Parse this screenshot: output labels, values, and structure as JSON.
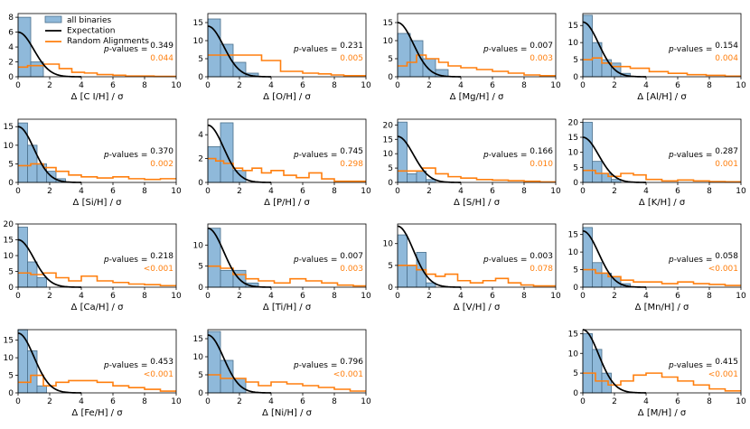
{
  "figure": {
    "legend": {
      "entries": [
        "all binaries",
        "Expectation",
        "Random Alignments"
      ]
    },
    "pvalue_label": "-values =",
    "pvalue_prefix": "p"
  },
  "colors": {
    "binaries_fill": "#8fb9da",
    "binaries_edge": "#4a6f8a",
    "expectation": "#000000",
    "random": "#ff7f0e",
    "axis": "#000000"
  },
  "chart_data": [
    {
      "type": "histogram",
      "element": "C I",
      "xlabel": "Δ [C I/H] / σ",
      "ylabel": "",
      "xlim": [
        0,
        10
      ],
      "ylim": [
        0,
        8.5
      ],
      "xticks": [
        0,
        2,
        4,
        6,
        8,
        10
      ],
      "yticks": [
        0,
        2,
        4,
        6,
        8
      ],
      "bins": [
        0,
        0.8,
        1.6
      ],
      "binary_counts": [
        8,
        2
      ],
      "expectation_peak": 6.0,
      "random_x": [
        0,
        0.6,
        1.6,
        2.6,
        3.4,
        4.2,
        5.0,
        6.0,
        6.8,
        7.8,
        8.6,
        10
      ],
      "random_y": [
        1.3,
        1.5,
        1.7,
        1.1,
        0.6,
        0.5,
        0.3,
        0.2,
        0.1,
        0.1,
        0.05
      ],
      "pvalue_binaries": "0.349",
      "pvalue_random": "0.044"
    },
    {
      "type": "histogram",
      "element": "O",
      "xlabel": "Δ [O/H] / σ",
      "ylabel": "",
      "xlim": [
        0,
        10
      ],
      "ylim": [
        0,
        17.5
      ],
      "xticks": [
        0,
        2,
        4,
        6,
        8,
        10
      ],
      "yticks": [
        0,
        5,
        10,
        15
      ],
      "bins": [
        0,
        0.8,
        1.6,
        2.4,
        3.2
      ],
      "binary_counts": [
        16,
        9,
        4,
        1
      ],
      "expectation_peak": 14.0,
      "random_x": [
        0,
        1.8,
        3.4,
        4.6,
        6.0,
        7.0,
        7.8,
        8.6,
        10
      ],
      "random_y": [
        6,
        6,
        4.5,
        1.5,
        1.0,
        0.8,
        0.5,
        0.3
      ],
      "pvalue_binaries": "0.231",
      "pvalue_random": "0.005"
    },
    {
      "type": "histogram",
      "element": "Mg",
      "xlabel": "Δ [Mg/H] / σ",
      "ylabel": "",
      "xlim": [
        0,
        10
      ],
      "ylim": [
        0,
        17.5
      ],
      "xticks": [
        0,
        2,
        4,
        6,
        8,
        10
      ],
      "yticks": [
        0,
        5,
        10,
        15
      ],
      "bins": [
        0,
        0.8,
        1.6,
        2.4,
        3.2
      ],
      "binary_counts": [
        12,
        10,
        5,
        2
      ],
      "expectation_peak": 15.0,
      "random_x": [
        0,
        0.6,
        1.2,
        1.8,
        2.6,
        3.2,
        4.0,
        5.0,
        6.0,
        7.0,
        8.0,
        9.0,
        10
      ],
      "random_y": [
        3,
        4,
        6,
        5,
        4,
        3,
        2.5,
        2,
        1.5,
        1,
        0.5,
        0.3
      ],
      "pvalue_binaries": "0.007",
      "pvalue_random": "0.003"
    },
    {
      "type": "histogram",
      "element": "Al",
      "xlabel": "Δ [Al/H] / σ",
      "ylabel": "",
      "xlim": [
        0,
        10
      ],
      "ylim": [
        0,
        18.5
      ],
      "xticks": [
        0,
        2,
        4,
        6,
        8,
        10
      ],
      "yticks": [
        0,
        5,
        10,
        15
      ],
      "bins": [
        0,
        0.6,
        1.2,
        1.8,
        2.4,
        3.0
      ],
      "binary_counts": [
        18,
        10,
        5,
        4,
        1
      ],
      "expectation_peak": 16.0,
      "random_x": [
        0,
        0.6,
        1.2,
        1.8,
        3.0,
        4.2,
        5.4,
        6.6,
        7.8,
        9.0,
        10
      ],
      "random_y": [
        5,
        5.5,
        4,
        3,
        2.5,
        1.5,
        1.0,
        0.6,
        0.4,
        0.2
      ],
      "pvalue_binaries": "0.154",
      "pvalue_random": "0.004"
    },
    {
      "type": "histogram",
      "element": "Si",
      "xlabel": "Δ [Si/H] / σ",
      "ylabel": "",
      "xlim": [
        0,
        10
      ],
      "ylim": [
        0,
        17
      ],
      "xticks": [
        0,
        2,
        4,
        6,
        8,
        10
      ],
      "yticks": [
        0,
        5,
        10,
        15
      ],
      "bins": [
        0,
        0.6,
        1.2,
        1.8,
        2.4,
        3.0
      ],
      "binary_counts": [
        16,
        10,
        5,
        3,
        1
      ],
      "expectation_peak": 15.0,
      "random_x": [
        0,
        0.8,
        1.6,
        2.4,
        3.2,
        4.0,
        5.0,
        6.0,
        7.0,
        8.0,
        9.0,
        10
      ],
      "random_y": [
        4.5,
        5,
        4,
        3,
        2,
        1.5,
        1.2,
        1.5,
        1,
        0.8,
        1
      ],
      "pvalue_binaries": "0.370",
      "pvalue_random": "0.002"
    },
    {
      "type": "histogram",
      "element": "P",
      "xlabel": "Δ [P/H] / σ",
      "ylabel": "",
      "xlim": [
        0,
        10
      ],
      "ylim": [
        0,
        5.3
      ],
      "xticks": [
        0,
        2,
        4,
        6,
        8,
        10
      ],
      "yticks": [
        0,
        2,
        4
      ],
      "bins": [
        0,
        0.8,
        1.6,
        2.4
      ],
      "binary_counts": [
        3,
        5,
        1
      ],
      "expectation_peak": 4.8,
      "random_x": [
        0,
        0.5,
        1.0,
        1.6,
        2.2,
        2.8,
        3.4,
        4.0,
        4.8,
        5.6,
        6.4,
        7.2,
        8.0,
        10
      ],
      "random_y": [
        2.0,
        1.8,
        1.6,
        1.2,
        1.0,
        1.2,
        0.8,
        1.0,
        0.6,
        0.4,
        0.8,
        0.3,
        0.1
      ],
      "pvalue_binaries": "0.745",
      "pvalue_random": "0.298"
    },
    {
      "type": "histogram",
      "element": "S",
      "xlabel": "Δ [S/H] / σ",
      "ylabel": "",
      "xlim": [
        0,
        10
      ],
      "ylim": [
        0,
        22
      ],
      "xticks": [
        0,
        2,
        4,
        6,
        8,
        10
      ],
      "yticks": [
        0,
        5,
        10,
        15,
        20
      ],
      "bins": [
        0,
        0.6,
        1.2,
        1.8,
        2.4
      ],
      "binary_counts": [
        21,
        3,
        4,
        1
      ],
      "expectation_peak": 16.0,
      "random_x": [
        0,
        0.8,
        1.6,
        2.4,
        3.2,
        4.0,
        5.0,
        6.0,
        7.0,
        8.0,
        9.0,
        10
      ],
      "random_y": [
        4,
        4,
        5,
        3,
        2,
        1.5,
        1,
        0.8,
        0.6,
        0.4,
        0.2
      ],
      "pvalue_binaries": "0.166",
      "pvalue_random": "0.010"
    },
    {
      "type": "histogram",
      "element": "K",
      "xlabel": "Δ [K/H] / σ",
      "ylabel": "",
      "xlim": [
        0,
        10
      ],
      "ylim": [
        0,
        21
      ],
      "xticks": [
        0,
        2,
        4,
        6,
        8,
        10
      ],
      "yticks": [
        0,
        5,
        10,
        15,
        20
      ],
      "bins": [
        0,
        0.6,
        1.2,
        1.8,
        2.4
      ],
      "binary_counts": [
        20,
        7,
        3,
        1
      ],
      "expectation_peak": 15.0,
      "random_x": [
        0,
        0.8,
        1.6,
        2.4,
        3.2,
        4.0,
        5.0,
        6.0,
        7.0,
        8.0,
        9.0,
        10
      ],
      "random_y": [
        4,
        3,
        2,
        3,
        2.5,
        1,
        0.5,
        0.8,
        0.5,
        0.3,
        0.2
      ],
      "pvalue_binaries": "0.287",
      "pvalue_random": "0.001"
    },
    {
      "type": "histogram",
      "element": "Ca",
      "xlabel": "Δ [Ca/H] / σ",
      "ylabel": "",
      "xlim": [
        0,
        10
      ],
      "ylim": [
        0,
        20
      ],
      "xticks": [
        0,
        2,
        4,
        6,
        8,
        10
      ],
      "yticks": [
        0,
        5,
        10,
        15,
        20
      ],
      "bins": [
        0,
        0.6,
        1.2,
        1.8
      ],
      "binary_counts": [
        19,
        8,
        3
      ],
      "expectation_peak": 15.0,
      "random_x": [
        0,
        0.8,
        1.6,
        2.4,
        3.2,
        4.0,
        5.0,
        6.0,
        7.0,
        8.0,
        9.0,
        10
      ],
      "random_y": [
        4.5,
        4,
        4.5,
        3,
        2,
        3.5,
        2,
        1.5,
        1,
        0.8,
        0.5
      ],
      "pvalue_binaries": "0.218",
      "pvalue_random": "<0.001"
    },
    {
      "type": "histogram",
      "element": "Ti",
      "xlabel": "Δ [Ti/H] / σ",
      "ylabel": "",
      "xlim": [
        0,
        10
      ],
      "ylim": [
        0,
        15
      ],
      "xticks": [
        0,
        2,
        4,
        6,
        8,
        10
      ],
      "yticks": [
        0,
        5,
        10
      ],
      "bins": [
        0,
        0.8,
        1.6,
        2.4,
        3.2
      ],
      "binary_counts": [
        14,
        4,
        4,
        1
      ],
      "expectation_peak": 14.0,
      "random_x": [
        0,
        0.8,
        1.6,
        2.4,
        3.2,
        4.2,
        5.2,
        6.2,
        7.2,
        8.2,
        9.2,
        10
      ],
      "random_y": [
        5,
        4.5,
        3,
        2,
        1.5,
        1,
        2,
        1.5,
        1,
        0.5,
        0.3
      ],
      "pvalue_binaries": "0.007",
      "pvalue_random": "0.003"
    },
    {
      "type": "histogram",
      "element": "V",
      "xlabel": "Δ [V/H] / σ",
      "ylabel": "",
      "xlim": [
        0,
        10
      ],
      "ylim": [
        0,
        14.5
      ],
      "xticks": [
        0,
        2,
        4,
        6,
        8,
        10
      ],
      "yticks": [
        0,
        5,
        10
      ],
      "bins": [
        0,
        0.6,
        1.2,
        1.8,
        2.4
      ],
      "binary_counts": [
        12,
        5,
        8,
        1
      ],
      "expectation_peak": 14.0,
      "random_x": [
        0,
        0.6,
        1.2,
        1.8,
        2.4,
        3.0,
        3.8,
        4.6,
        5.4,
        6.2,
        7.0,
        7.8,
        8.6,
        10
      ],
      "random_y": [
        5,
        5,
        4,
        3,
        2.5,
        3,
        1.5,
        1,
        1.5,
        2,
        1,
        0.5,
        0.3
      ],
      "pvalue_binaries": "0.003",
      "pvalue_random": "0.078"
    },
    {
      "type": "histogram",
      "element": "Mn",
      "xlabel": "Δ [Mn/H] / σ",
      "ylabel": "",
      "xlim": [
        0,
        10
      ],
      "ylim": [
        0,
        18
      ],
      "xticks": [
        0,
        2,
        4,
        6,
        8,
        10
      ],
      "yticks": [
        0,
        5,
        10,
        15
      ],
      "bins": [
        0,
        0.6,
        1.2,
        1.8,
        2.4,
        3.0
      ],
      "binary_counts": [
        17,
        7,
        4,
        3,
        1
      ],
      "expectation_peak": 16.0,
      "random_x": [
        0,
        0.8,
        1.6,
        2.4,
        3.2,
        4.0,
        5.0,
        6.0,
        7.0,
        8.0,
        9.0,
        10
      ],
      "random_y": [
        5,
        4,
        3,
        2,
        1.5,
        1.5,
        1,
        1.5,
        1,
        0.8,
        0.5
      ],
      "pvalue_binaries": "0.058",
      "pvalue_random": "<0.001"
    },
    {
      "type": "histogram",
      "element": "Fe",
      "xlabel": "Δ [Fe/H] / σ",
      "ylabel": "",
      "xlim": [
        0,
        10
      ],
      "ylim": [
        0,
        18
      ],
      "xticks": [
        0,
        2,
        4,
        6,
        8,
        10
      ],
      "yticks": [
        0,
        5,
        10,
        15
      ],
      "bins": [
        0,
        0.6,
        1.2,
        1.8
      ],
      "binary_counts": [
        18,
        12,
        2
      ],
      "expectation_peak": 17.0,
      "random_x": [
        0,
        0.8,
        1.6,
        2.4,
        3.2,
        4.0,
        5.0,
        6.0,
        7.0,
        8.0,
        9.0,
        10
      ],
      "random_y": [
        3,
        5,
        2,
        3,
        3.5,
        3.5,
        3,
        2,
        1.5,
        1,
        0.5
      ],
      "pvalue_binaries": "0.453",
      "pvalue_random": "<0.001"
    },
    {
      "type": "histogram",
      "element": "Ni",
      "xlabel": "Δ [Ni/H] / σ",
      "ylabel": "",
      "xlim": [
        0,
        10
      ],
      "ylim": [
        0,
        17.5
      ],
      "xticks": [
        0,
        2,
        4,
        6,
        8,
        10
      ],
      "yticks": [
        0,
        5,
        10,
        15
      ],
      "bins": [
        0,
        0.8,
        1.6,
        2.4
      ],
      "binary_counts": [
        17,
        9,
        4
      ],
      "expectation_peak": 16.0,
      "random_x": [
        0,
        0.8,
        1.6,
        2.4,
        3.2,
        4.0,
        5.0,
        6.0,
        7.0,
        8.0,
        9.0,
        10
      ],
      "random_y": [
        5,
        4,
        4,
        3,
        2,
        3,
        2.5,
        2,
        1.5,
        1,
        0.5
      ],
      "pvalue_binaries": "0.796",
      "pvalue_random": "<0.001"
    },
    {
      "type": "histogram",
      "element": "M",
      "xlabel": "Δ [M/H] / σ",
      "ylabel": "",
      "xlim": [
        0,
        10
      ],
      "ylim": [
        0,
        16
      ],
      "xticks": [
        0,
        2,
        4,
        6,
        8,
        10
      ],
      "yticks": [
        0,
        5,
        10,
        15
      ],
      "bins": [
        0,
        0.6,
        1.2,
        1.8
      ],
      "binary_counts": [
        15,
        11,
        5
      ],
      "expectation_peak": 16.0,
      "random_x": [
        0,
        0.8,
        1.6,
        2.4,
        3.2,
        4.0,
        5.0,
        6.0,
        7.0,
        8.0,
        9.0,
        10
      ],
      "random_y": [
        5,
        3,
        2,
        3,
        4.5,
        5,
        4,
        3,
        2,
        1,
        0.5
      ],
      "pvalue_binaries": "0.415",
      "pvalue_random": "<0.001"
    }
  ]
}
